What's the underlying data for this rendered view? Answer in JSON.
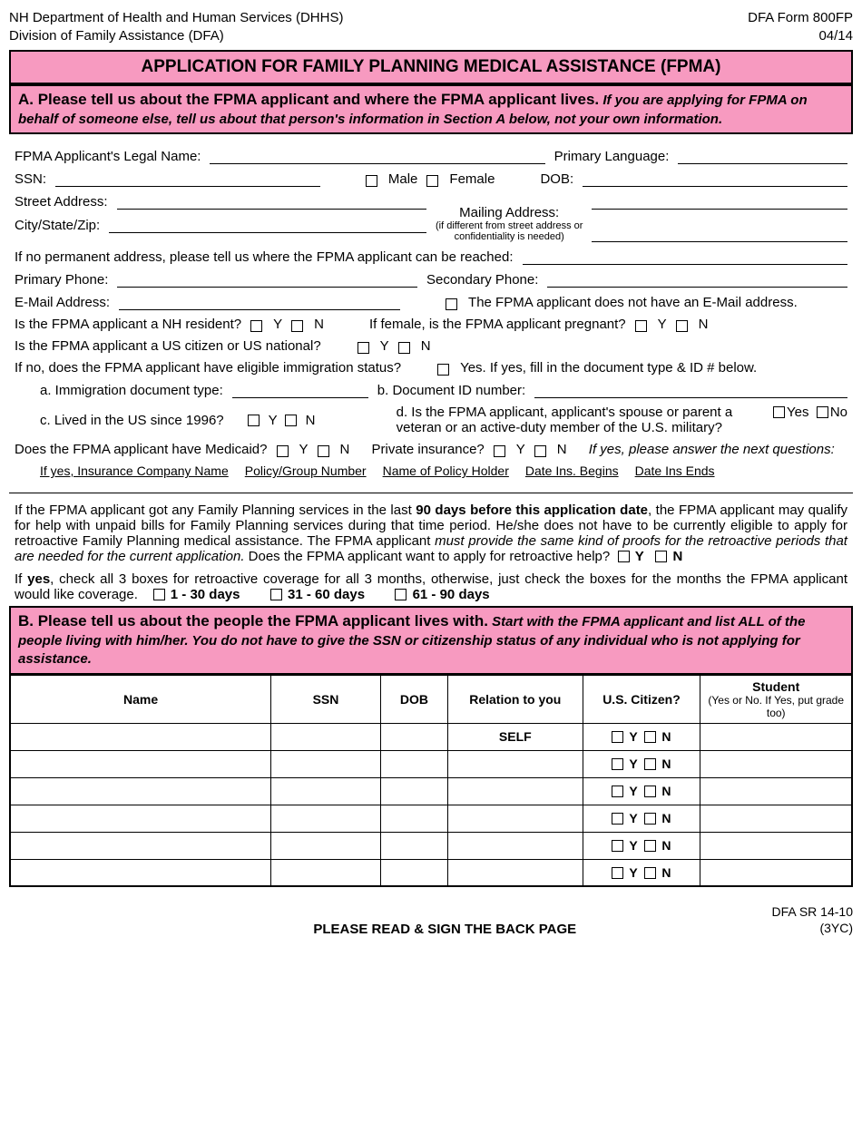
{
  "header": {
    "dept_line1": "NH Department of Health and Human Services (DHHS)",
    "dept_line2": "Division of Family Assistance (DFA)",
    "form_id": "DFA Form 800FP",
    "form_date": "04/14"
  },
  "title": "APPLICATION FOR FAMILY PLANNING MEDICAL ASSISTANCE (FPMA)",
  "sectionA": {
    "lead": "A.  Please tell us about the FPMA applicant and where the FPMA applicant lives.",
    "sub": " If you are applying for FPMA on behalf of someone else, tell us about that person's information in Section A below, not your own information.",
    "labels": {
      "legal_name": "FPMA Applicant's Legal Name:",
      "primary_lang": "Primary Language:",
      "ssn": "SSN:",
      "male": "Male",
      "female": "Female",
      "dob": "DOB:",
      "street": "Street Address:",
      "mailing": "Mailing Address:",
      "mailing_note1": "(if different from street address or",
      "mailing_note2": "confidentiality is needed)",
      "city": "City/State/Zip:",
      "no_perm": "If no permanent address, please tell us where the FPMA applicant can be reached:",
      "pphone": "Primary Phone:",
      "sphone": "Secondary Phone:",
      "email": "E-Mail Address:",
      "no_email": "The FPMA applicant does not have an E-Mail address.",
      "nh_res": "Is the FPMA applicant a NH resident?",
      "pregnant": "If female, is the FPMA applicant pregnant?",
      "citizen": "Is the FPMA applicant a US citizen or US national?",
      "immig": "If no, does the FPMA applicant have eligible immigration status?",
      "immig_yes": "Yes. If yes, fill in the document type & ID # below.",
      "immig_a": "a. Immigration document type:",
      "immig_b": "b. Document ID number:",
      "immig_c": "c. Lived in the US since 1996?",
      "immig_d": "d. Is the FPMA applicant, applicant's spouse or parent a veteran or an active-duty member of the U.S. military?",
      "medicaid": "Does the FPMA applicant have Medicaid?",
      "private_ins": "Private insurance?",
      "ins_note": "If yes, please answer the next questions:",
      "ins_h1": "If yes, Insurance Company Name",
      "ins_h2": "Policy/Group Number",
      "ins_h3": "Name of Policy Holder",
      "ins_h4": "Date Ins. Begins",
      "ins_h5": "Date Ins Ends",
      "y": "Y",
      "n": "N",
      "yes": "Yes",
      "no": "No"
    }
  },
  "retro": {
    "para": "If the FPMA applicant got any Family Planning services in the last 90 days before this application date, the FPMA applicant may qualify for help with unpaid bills for Family Planning services during that time period. He/she does not have to be currently eligible to apply for retroactive Family Planning medical assistance. The FPMA applicant must provide the same kind of proofs for the retroactive periods that are needed for the current application. Does the FPMA applicant want to apply for retroactive help?",
    "bold1": "90 days before this application date",
    "ital1": "must provide the same kind of proofs for the retroactive periods that are needed for the current application.",
    "y": "Y",
    "n": "N",
    "para2_lead": "If ",
    "para2_yes": "yes",
    "para2_rest": ", check all 3 boxes for retroactive coverage for all 3 months, otherwise, just check the boxes for the months the FPMA applicant would like coverage.",
    "opt1": "1 - 30 days",
    "opt2": "31 - 60 days",
    "opt3": "61 - 90 days"
  },
  "sectionB": {
    "lead": "B.  Please tell us about the people the FPMA applicant lives with.",
    "sub1": " Start with the FPMA applicant and list ALL of the people living with him/her.",
    "sub2": " You do not have to give the SSN or citizenship status of any individual who is not applying for assistance.",
    "cols": {
      "name": "Name",
      "ssn": "SSN",
      "dob": "DOB",
      "relation": "Relation to you",
      "citizen": "U.S. Citizen?",
      "student": "Student",
      "student_sub": " (Yes or No. If Yes, put grade too)"
    },
    "self": "SELF",
    "y": "Y",
    "n": "N",
    "row_count": 6
  },
  "footer": {
    "center": "PLEASE READ & SIGN THE BACK PAGE",
    "right1": "DFA SR 14-10",
    "right2": "(3YC)"
  },
  "colors": {
    "pink": "#f79ac0",
    "border": "#000000"
  }
}
